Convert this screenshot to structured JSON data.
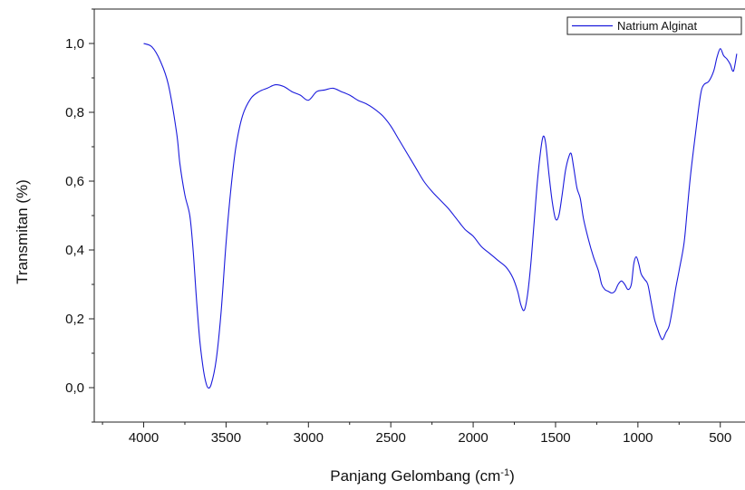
{
  "chart_data": {
    "type": "line",
    "title": "",
    "xlabel": "Panjang Gelombang (cm",
    "xlabel_sup": "-1",
    "xlabel_close": ")",
    "ylabel": "Transmitan (%)",
    "xlim": [
      4300,
      350
    ],
    "ylim": [
      -0.1,
      1.1
    ],
    "x_reversed": true,
    "x_ticks": [
      4000,
      3500,
      3000,
      2500,
      2000,
      1500,
      1000,
      500
    ],
    "x_tick_labels": [
      "4000",
      "3500",
      "3000",
      "2500",
      "2000",
      "1500",
      "1000",
      "500"
    ],
    "y_ticks": [
      0.0,
      0.2,
      0.4,
      0.6,
      0.8,
      1.0
    ],
    "y_tick_labels": [
      "0,0",
      "0,2",
      "0,4",
      "0,6",
      "0,8",
      "1,0"
    ],
    "grid": false,
    "legend_position": "top-right",
    "line_color": "#1a1adc",
    "series": [
      {
        "name": "Natrium Alginat",
        "x": [
          4000,
          3950,
          3900,
          3850,
          3800,
          3780,
          3750,
          3720,
          3700,
          3680,
          3660,
          3640,
          3625,
          3610,
          3590,
          3560,
          3530,
          3500,
          3470,
          3440,
          3400,
          3350,
          3300,
          3250,
          3200,
          3150,
          3100,
          3050,
          3000,
          2950,
          2900,
          2850,
          2800,
          2750,
          2700,
          2650,
          2600,
          2550,
          2500,
          2450,
          2400,
          2350,
          2300,
          2250,
          2200,
          2150,
          2100,
          2050,
          2000,
          1950,
          1900,
          1850,
          1800,
          1760,
          1730,
          1710,
          1690,
          1670,
          1650,
          1630,
          1610,
          1590,
          1575,
          1560,
          1540,
          1520,
          1500,
          1480,
          1460,
          1440,
          1420,
          1405,
          1390,
          1370,
          1350,
          1330,
          1300,
          1270,
          1240,
          1220,
          1200,
          1180,
          1160,
          1140,
          1120,
          1100,
          1080,
          1060,
          1040,
          1025,
          1010,
          995,
          980,
          960,
          940,
          920,
          900,
          880,
          865,
          850,
          830,
          810,
          790,
          770,
          750,
          720,
          700,
          680,
          650,
          620,
          600,
          570,
          540,
          520,
          500,
          480,
          460,
          440,
          420,
          400
        ],
        "y": [
          1.0,
          0.99,
          0.95,
          0.88,
          0.74,
          0.65,
          0.56,
          0.5,
          0.4,
          0.26,
          0.14,
          0.06,
          0.02,
          0.0,
          0.01,
          0.08,
          0.22,
          0.42,
          0.58,
          0.7,
          0.79,
          0.84,
          0.86,
          0.87,
          0.88,
          0.875,
          0.86,
          0.85,
          0.835,
          0.86,
          0.865,
          0.87,
          0.86,
          0.85,
          0.835,
          0.825,
          0.81,
          0.79,
          0.76,
          0.72,
          0.68,
          0.64,
          0.6,
          0.57,
          0.545,
          0.52,
          0.49,
          0.46,
          0.44,
          0.41,
          0.39,
          0.37,
          0.35,
          0.32,
          0.28,
          0.24,
          0.225,
          0.27,
          0.36,
          0.48,
          0.6,
          0.69,
          0.73,
          0.71,
          0.62,
          0.54,
          0.49,
          0.5,
          0.56,
          0.63,
          0.67,
          0.68,
          0.64,
          0.58,
          0.55,
          0.49,
          0.43,
          0.38,
          0.34,
          0.3,
          0.285,
          0.28,
          0.275,
          0.28,
          0.3,
          0.31,
          0.3,
          0.285,
          0.3,
          0.36,
          0.38,
          0.36,
          0.33,
          0.315,
          0.3,
          0.25,
          0.2,
          0.17,
          0.15,
          0.14,
          0.16,
          0.18,
          0.23,
          0.29,
          0.34,
          0.42,
          0.52,
          0.62,
          0.74,
          0.85,
          0.88,
          0.89,
          0.92,
          0.96,
          0.985,
          0.965,
          0.955,
          0.94,
          0.92,
          0.97
        ]
      }
    ]
  }
}
